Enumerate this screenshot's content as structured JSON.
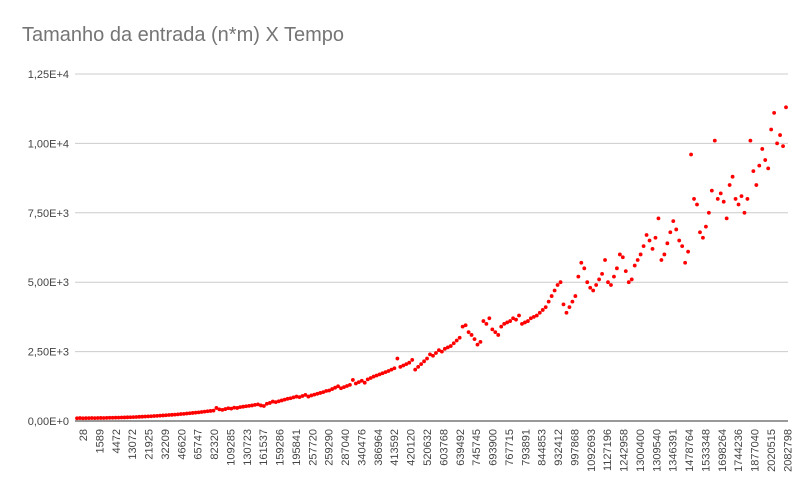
{
  "chart_data": {
    "type": "scatter",
    "title": "Tamanho da entrada (n*m) X Tempo",
    "xlabel": "",
    "ylabel": "",
    "ylim": [
      0,
      12500
    ],
    "yticks": [
      "0,00E+0",
      "2,50E+3",
      "5,00E+3",
      "7,50E+3",
      "1,00E+4",
      "1,25E+4"
    ],
    "ytick_values": [
      0,
      2500,
      5000,
      7500,
      10000,
      12500
    ],
    "grid": true,
    "legend": "none",
    "x_tick_labels": [
      "28",
      "1589",
      "4472",
      "13072",
      "21925",
      "32209",
      "46620",
      "65747",
      "82320",
      "109285",
      "130723",
      "161537",
      "159286",
      "195841",
      "257720",
      "259290",
      "287040",
      "340476",
      "386964",
      "413592",
      "420120",
      "520632",
      "603768",
      "639492",
      "745745",
      "693900",
      "767715",
      "793891",
      "844853",
      "932412",
      "997868",
      "1092693",
      "1127196",
      "1242958",
      "1300400",
      "1309540",
      "1346391",
      "1478764",
      "1533348",
      "1698264",
      "1744236",
      "1877040",
      "2020515",
      "2082798"
    ],
    "series": [
      {
        "color": "#ff0000",
        "points": [
          [
            0,
            100
          ],
          [
            0.2,
            105
          ],
          [
            0.4,
            98
          ],
          [
            0.6,
            102
          ],
          [
            0.8,
            104
          ],
          [
            1,
            106
          ],
          [
            1.2,
            103
          ],
          [
            1.4,
            108
          ],
          [
            1.6,
            110
          ],
          [
            1.8,
            107
          ],
          [
            2,
            112
          ],
          [
            2.2,
            115
          ],
          [
            2.4,
            118
          ],
          [
            2.6,
            120
          ],
          [
            2.8,
            122
          ],
          [
            3,
            125
          ],
          [
            3.2,
            128
          ],
          [
            3.4,
            132
          ],
          [
            3.6,
            136
          ],
          [
            3.8,
            140
          ],
          [
            4,
            145
          ],
          [
            4.2,
            150
          ],
          [
            4.4,
            155
          ],
          [
            4.6,
            160
          ],
          [
            4.8,
            165
          ],
          [
            5,
            172
          ],
          [
            5.2,
            178
          ],
          [
            5.4,
            185
          ],
          [
            5.6,
            192
          ],
          [
            5.8,
            200
          ],
          [
            6,
            208
          ],
          [
            6.2,
            215
          ],
          [
            6.4,
            222
          ],
          [
            6.6,
            230
          ],
          [
            6.8,
            240
          ],
          [
            7,
            250
          ],
          [
            7.2,
            258
          ],
          [
            7.4,
            268
          ],
          [
            7.6,
            278
          ],
          [
            7.8,
            290
          ],
          [
            8,
            300
          ],
          [
            8.2,
            312
          ],
          [
            8.4,
            325
          ],
          [
            8.6,
            338
          ],
          [
            8.8,
            350
          ],
          [
            9,
            362
          ],
          [
            9.2,
            375
          ],
          [
            9.4,
            470
          ],
          [
            9.6,
            420
          ],
          [
            9.8,
            400
          ],
          [
            10,
            430
          ],
          [
            10.2,
            460
          ],
          [
            10.4,
            445
          ],
          [
            10.6,
            480
          ],
          [
            10.8,
            470
          ],
          [
            11,
            500
          ],
          [
            11.2,
            515
          ],
          [
            11.4,
            530
          ],
          [
            11.6,
            545
          ],
          [
            11.8,
            560
          ],
          [
            12,
            580
          ],
          [
            12.2,
            600
          ],
          [
            12.4,
            560
          ],
          [
            12.6,
            540
          ],
          [
            12.8,
            620
          ],
          [
            13,
            650
          ],
          [
            13.2,
            700
          ],
          [
            13.4,
            680
          ],
          [
            13.6,
            710
          ],
          [
            13.8,
            740
          ],
          [
            14,
            770
          ],
          [
            14.2,
            800
          ],
          [
            14.4,
            820
          ],
          [
            14.6,
            850
          ],
          [
            14.8,
            880
          ],
          [
            15,
            860
          ],
          [
            15.2,
            900
          ],
          [
            15.4,
            940
          ],
          [
            15.6,
            880
          ],
          [
            15.8,
            920
          ],
          [
            16,
            950
          ],
          [
            16.2,
            980
          ],
          [
            16.4,
            1010
          ],
          [
            16.6,
            1040
          ],
          [
            16.8,
            1080
          ],
          [
            17,
            1100
          ],
          [
            17.2,
            1150
          ],
          [
            17.4,
            1200
          ],
          [
            17.6,
            1250
          ],
          [
            17.8,
            1180
          ],
          [
            18,
            1220
          ],
          [
            18.2,
            1260
          ],
          [
            18.4,
            1300
          ],
          [
            18.6,
            1480
          ],
          [
            18.8,
            1350
          ],
          [
            19,
            1400
          ],
          [
            19.2,
            1450
          ],
          [
            19.4,
            1380
          ],
          [
            19.6,
            1500
          ],
          [
            19.8,
            1550
          ],
          [
            20,
            1600
          ],
          [
            20.2,
            1640
          ],
          [
            20.4,
            1680
          ],
          [
            20.6,
            1720
          ],
          [
            20.8,
            1760
          ],
          [
            21,
            1800
          ],
          [
            21.2,
            1850
          ],
          [
            21.4,
            1900
          ],
          [
            21.6,
            2250
          ],
          [
            21.8,
            1950
          ],
          [
            22,
            2000
          ],
          [
            22.2,
            2050
          ],
          [
            22.4,
            2100
          ],
          [
            22.6,
            2200
          ],
          [
            22.8,
            1850
          ],
          [
            23,
            1950
          ],
          [
            23.2,
            2050
          ],
          [
            23.4,
            2150
          ],
          [
            23.6,
            2250
          ],
          [
            23.8,
            2400
          ],
          [
            24,
            2350
          ],
          [
            24.2,
            2450
          ],
          [
            24.4,
            2550
          ],
          [
            24.6,
            2500
          ],
          [
            24.8,
            2600
          ],
          [
            25,
            2650
          ],
          [
            25.2,
            2700
          ],
          [
            25.4,
            2800
          ],
          [
            25.6,
            2900
          ],
          [
            25.8,
            3000
          ],
          [
            26,
            3400
          ],
          [
            26.2,
            3450
          ],
          [
            26.4,
            3200
          ],
          [
            26.6,
            3100
          ],
          [
            26.8,
            2950
          ],
          [
            27,
            2750
          ],
          [
            27.2,
            2850
          ],
          [
            27.4,
            3600
          ],
          [
            27.6,
            3500
          ],
          [
            27.8,
            3700
          ],
          [
            28,
            3300
          ],
          [
            28.2,
            3200
          ],
          [
            28.4,
            3100
          ],
          [
            28.6,
            3400
          ],
          [
            28.8,
            3500
          ],
          [
            29,
            3550
          ],
          [
            29.2,
            3600
          ],
          [
            29.4,
            3700
          ],
          [
            29.6,
            3650
          ],
          [
            29.8,
            3800
          ],
          [
            30,
            3500
          ],
          [
            30.2,
            3550
          ],
          [
            30.4,
            3600
          ],
          [
            30.6,
            3700
          ],
          [
            30.8,
            3750
          ],
          [
            31,
            3800
          ],
          [
            31.2,
            3900
          ],
          [
            31.4,
            4000
          ],
          [
            31.6,
            4100
          ],
          [
            31.8,
            4300
          ],
          [
            32,
            4500
          ],
          [
            32.2,
            4700
          ],
          [
            32.4,
            4900
          ],
          [
            32.6,
            5000
          ],
          [
            32.8,
            4200
          ],
          [
            33,
            3900
          ],
          [
            33.2,
            4100
          ],
          [
            33.4,
            4300
          ],
          [
            33.6,
            4500
          ],
          [
            33.8,
            5200
          ],
          [
            34,
            5700
          ],
          [
            34.2,
            5500
          ],
          [
            34.4,
            5000
          ],
          [
            34.6,
            4800
          ],
          [
            34.8,
            4700
          ],
          [
            35,
            4900
          ],
          [
            35.2,
            5100
          ],
          [
            35.4,
            5300
          ],
          [
            35.6,
            5800
          ],
          [
            35.8,
            5000
          ],
          [
            36,
            4900
          ],
          [
            36.2,
            5200
          ],
          [
            36.4,
            5500
          ],
          [
            36.6,
            6000
          ],
          [
            36.8,
            5900
          ],
          [
            37,
            5400
          ],
          [
            37.2,
            5000
          ],
          [
            37.4,
            5100
          ],
          [
            37.6,
            5600
          ],
          [
            37.8,
            5800
          ],
          [
            38,
            6000
          ],
          [
            38.2,
            6300
          ],
          [
            38.4,
            6700
          ],
          [
            38.6,
            6500
          ],
          [
            38.8,
            6200
          ],
          [
            39,
            6600
          ],
          [
            39.2,
            7300
          ],
          [
            39.4,
            5800
          ],
          [
            39.6,
            6000
          ],
          [
            39.8,
            6400
          ],
          [
            40,
            6800
          ],
          [
            40.2,
            7200
          ],
          [
            40.4,
            6900
          ],
          [
            40.6,
            6500
          ],
          [
            40.8,
            6300
          ],
          [
            41,
            5700
          ],
          [
            41.2,
            6100
          ],
          [
            41.4,
            9600
          ],
          [
            41.6,
            8000
          ],
          [
            41.8,
            7800
          ],
          [
            42,
            6800
          ],
          [
            42.2,
            6600
          ],
          [
            42.4,
            7000
          ],
          [
            42.6,
            7500
          ],
          [
            42.8,
            8300
          ],
          [
            43,
            10100
          ],
          [
            43.2,
            8000
          ],
          [
            43.4,
            8200
          ],
          [
            43.6,
            7900
          ],
          [
            43.8,
            7300
          ],
          [
            44,
            8500
          ],
          [
            44.2,
            8800
          ],
          [
            44.4,
            8000
          ],
          [
            44.6,
            7800
          ],
          [
            44.8,
            8100
          ],
          [
            45,
            7500
          ],
          [
            45.2,
            8000
          ],
          [
            45.4,
            10100
          ],
          [
            45.6,
            9000
          ],
          [
            45.8,
            8500
          ],
          [
            46,
            9200
          ],
          [
            46.2,
            9800
          ],
          [
            46.4,
            9400
          ],
          [
            46.6,
            9100
          ],
          [
            46.8,
            10500
          ],
          [
            47,
            11100
          ],
          [
            47.2,
            10000
          ],
          [
            47.4,
            10300
          ],
          [
            47.6,
            9900
          ],
          [
            47.8,
            11300
          ]
        ]
      }
    ]
  }
}
